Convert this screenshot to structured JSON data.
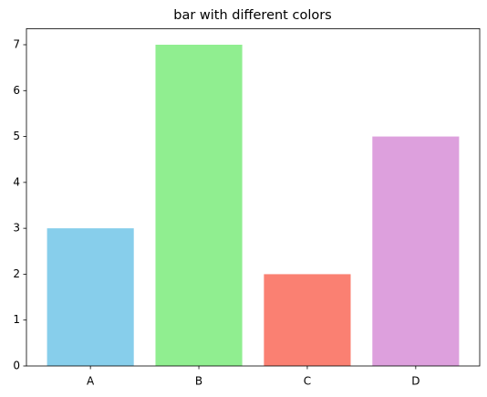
{
  "chart_data": {
    "type": "bar",
    "title": "bar with different colors",
    "categories": [
      "A",
      "B",
      "C",
      "D"
    ],
    "values": [
      3,
      7,
      2,
      5
    ],
    "colors": [
      "#87ceeb",
      "#90ee90",
      "#fa8072",
      "#dda0dd"
    ],
    "xlim": [
      -0.59,
      3.59
    ],
    "ylim": [
      0,
      7.35
    ],
    "yticks": [
      0,
      1,
      2,
      3,
      4,
      5,
      6,
      7
    ],
    "grid": false
  }
}
